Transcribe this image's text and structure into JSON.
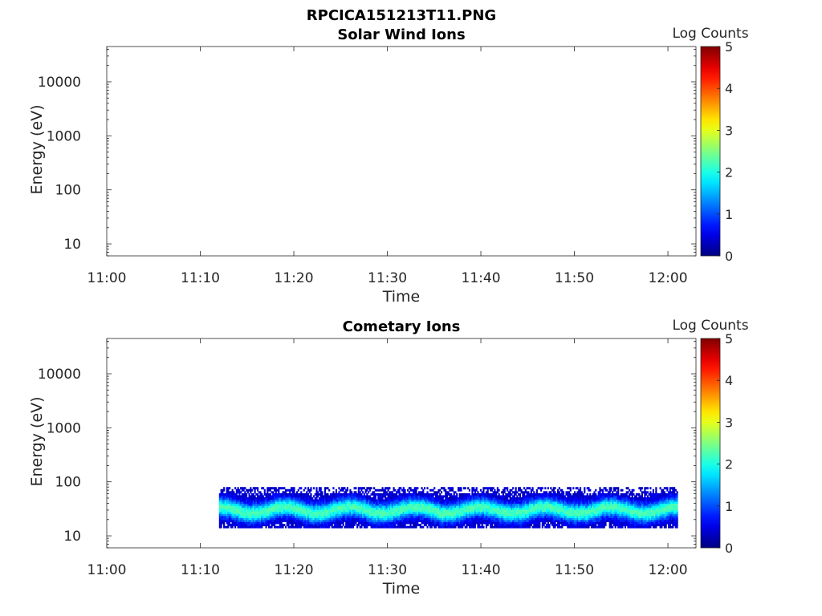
{
  "figure": {
    "title": "RPCICA151213T11.PNG"
  },
  "chart_data": [
    {
      "type": "heatmap",
      "title": "Solar Wind Ions",
      "xlabel": "Time",
      "ylabel": "Energy (eV)",
      "x_ticks": [
        "11:00",
        "11:10",
        "11:20",
        "11:30",
        "11:40",
        "11:50",
        "12:00"
      ],
      "x_range": [
        "11:00",
        "12:03"
      ],
      "y_ticks": [
        10,
        100,
        1000,
        10000
      ],
      "y_scale": "log",
      "y_range": [
        6,
        45000
      ],
      "colorbar": {
        "label": "Log Counts",
        "range": [
          0,
          5
        ],
        "ticks": [
          0,
          1,
          2,
          3,
          4,
          5
        ],
        "colormap": "jet"
      },
      "data": []
    },
    {
      "type": "heatmap",
      "title": "Cometary Ions",
      "xlabel": "Time",
      "ylabel": "Energy (eV)",
      "x_ticks": [
        "11:00",
        "11:10",
        "11:20",
        "11:30",
        "11:40",
        "11:50",
        "12:00"
      ],
      "x_range": [
        "11:00",
        "12:03"
      ],
      "y_ticks": [
        10,
        100,
        1000,
        10000
      ],
      "y_scale": "log",
      "y_range": [
        6,
        45000
      ],
      "colorbar": {
        "label": "Log Counts",
        "range": [
          0,
          5
        ],
        "ticks": [
          0,
          1,
          2,
          3,
          4,
          5
        ],
        "colormap": "jet"
      },
      "data": {
        "time_start": "11:12",
        "time_end": "12:01",
        "energy_min_eV": 14,
        "energy_max_eV": 80,
        "peak_energy_eV": 30,
        "typical_log_counts": [
          0.5,
          2.0
        ],
        "max_log_counts": 2.3
      }
    }
  ]
}
